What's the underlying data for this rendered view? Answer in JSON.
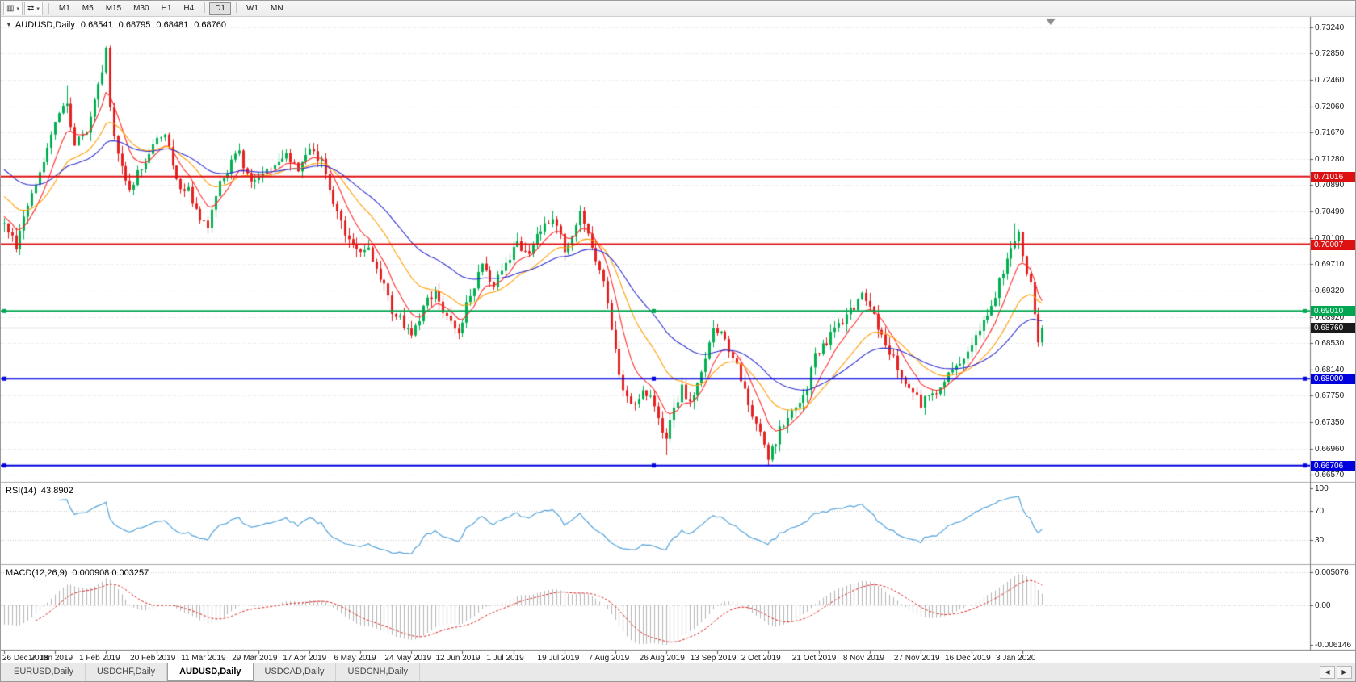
{
  "toolbar": {
    "tool_buttons": [
      {
        "name": "chart-type-button",
        "glyph": "▥",
        "caret": "▾"
      },
      {
        "name": "chart-shift-button",
        "glyph": "⇄",
        "caret": "▾"
      }
    ],
    "periods": [
      "M1",
      "M5",
      "M15",
      "M30",
      "H1",
      "H4",
      "D1",
      "W1",
      "MN"
    ],
    "active_period": "D1"
  },
  "chart": {
    "marker_glyph": "▼",
    "symbol": "AUDUSD,Daily",
    "open": "0.68541",
    "high": "0.68795",
    "low": "0.68481",
    "close": "0.68760",
    "price_axis_labels": [
      "0.73240",
      "0.72850",
      "0.72460",
      "0.72060",
      "0.71670",
      "0.71280",
      "0.70890",
      "0.70490",
      "0.70100",
      "0.69710",
      "0.69320",
      "0.68920",
      "0.68530",
      "0.68140",
      "0.67750",
      "0.67350",
      "0.66960",
      "0.66570"
    ],
    "hlines": [
      {
        "value": 0.71016,
        "label": "0.71016",
        "color": "#DD1111",
        "handles": false
      },
      {
        "value": 0.70007,
        "label": "0.70007",
        "color": "#DD1111",
        "handles": false
      },
      {
        "value": 0.6901,
        "label": "0.69010",
        "color": "#00A651",
        "handles": true
      },
      {
        "value": 0.68,
        "label": "0.68000",
        "color": "#0000DD",
        "handles": true
      },
      {
        "value": 0.66706,
        "label": "0.66706",
        "color": "#0000DD",
        "handles": true
      }
    ],
    "bid": {
      "value": 0.6876,
      "label": "0.68760",
      "line_color": "#A0A0A0",
      "badge_color": "#1A1A1A"
    }
  },
  "rsi": {
    "title": "RSI(14)",
    "value": "43.8902",
    "axis_labels": [
      "100",
      "70",
      "30"
    ],
    "levels": [
      70,
      30
    ],
    "line_color": "#55A3DA"
  },
  "macd": {
    "title": "MACD(12,26,9)",
    "values": "0.000908 0.003257",
    "axis_labels": [
      "0.005076",
      "0.00",
      "-0.006146"
    ],
    "axis_max": 0.005076,
    "axis_min": -0.006146,
    "hist_color": "#B4B4B4",
    "signal_color": "#D82222"
  },
  "dates": [
    "26 Dec 2018",
    "14 Jan 2019",
    "1 Feb 2019",
    "20 Feb 2019",
    "11 Mar 2019",
    "29 Mar 2019",
    "17 Apr 2019",
    "6 May 2019",
    "24 May 2019",
    "12 Jun 2019",
    "1 Jul 2019",
    "19 Jul 2019",
    "7 Aug 2019",
    "26 Aug 2019",
    "13 Sep 2019",
    "2 Oct 2019",
    "21 Oct 2019",
    "8 Nov 2019",
    "27 Nov 2019",
    "16 Dec 2019",
    "3 Jan 2020"
  ],
  "tabs": {
    "items": [
      {
        "label": "EURUSD,Daily",
        "active": false
      },
      {
        "label": "USDCHF,Daily",
        "active": false
      },
      {
        "label": "AUDUSD,Daily",
        "active": true
      },
      {
        "label": "USDCAD,Daily",
        "active": false
      },
      {
        "label": "USDCNH,Daily",
        "active": false
      }
    ],
    "scroll_left": "◀",
    "scroll_right": "▶"
  },
  "chart_data": {
    "type": "candlestick",
    "symbol": "AUDUSD",
    "timeframe": "Daily",
    "title": "AUDUSD,Daily 0.68541 0.68795 0.68481 0.68760",
    "ylim": [
      0.6657,
      0.7324
    ],
    "bars": 266,
    "seed": 12,
    "up_color": "#00B050",
    "down_color": "#E62020",
    "visible_ohlc": {
      "open": 0.68541,
      "high": 0.68795,
      "low": 0.68481,
      "close": 0.6876
    },
    "anchors": [
      [
        0,
        0.7035
      ],
      [
        3,
        0.7
      ],
      [
        6,
        0.7062
      ],
      [
        10,
        0.7128
      ],
      [
        13,
        0.7188
      ],
      [
        16,
        0.7212
      ],
      [
        18,
        0.7152
      ],
      [
        21,
        0.7168
      ],
      [
        24,
        0.7235
      ],
      [
        26,
        0.7288
      ],
      [
        27,
        0.7198
      ],
      [
        29,
        0.7132
      ],
      [
        32,
        0.7086
      ],
      [
        35,
        0.7116
      ],
      [
        38,
        0.7152
      ],
      [
        41,
        0.7162
      ],
      [
        44,
        0.7092
      ],
      [
        47,
        0.7082
      ],
      [
        50,
        0.7042
      ],
      [
        52,
        0.7026
      ],
      [
        55,
        0.7092
      ],
      [
        58,
        0.7122
      ],
      [
        60,
        0.7136
      ],
      [
        63,
        0.7092
      ],
      [
        66,
        0.7106
      ],
      [
        69,
        0.7122
      ],
      [
        72,
        0.7132
      ],
      [
        75,
        0.7116
      ],
      [
        78,
        0.7142
      ],
      [
        81,
        0.7126
      ],
      [
        84,
        0.7062
      ],
      [
        87,
        0.7016
      ],
      [
        90,
        0.6992
      ],
      [
        93,
        0.6996
      ],
      [
        96,
        0.6952
      ],
      [
        99,
        0.6902
      ],
      [
        102,
        0.6882
      ],
      [
        104,
        0.6866
      ],
      [
        107,
        0.6906
      ],
      [
        110,
        0.6932
      ],
      [
        113,
        0.6892
      ],
      [
        116,
        0.6872
      ],
      [
        119,
        0.6926
      ],
      [
        122,
        0.6966
      ],
      [
        125,
        0.6942
      ],
      [
        128,
        0.6966
      ],
      [
        131,
        0.7002
      ],
      [
        134,
        0.6986
      ],
      [
        137,
        0.7022
      ],
      [
        140,
        0.7042
      ],
      [
        143,
        0.6996
      ],
      [
        145,
        0.7012
      ],
      [
        147,
        0.7046
      ],
      [
        150,
        0.6992
      ],
      [
        153,
        0.6946
      ],
      [
        155,
        0.6876
      ],
      [
        157,
        0.6802
      ],
      [
        159,
        0.6772
      ],
      [
        161,
        0.6756
      ],
      [
        163,
        0.6786
      ],
      [
        165,
        0.6772
      ],
      [
        167,
        0.6742
      ],
      [
        169,
        0.6706
      ],
      [
        171,
        0.6756
      ],
      [
        173,
        0.6786
      ],
      [
        175,
        0.6762
      ],
      [
        177,
        0.6796
      ],
      [
        179,
        0.6832
      ],
      [
        181,
        0.6882
      ],
      [
        184,
        0.6862
      ],
      [
        187,
        0.6816
      ],
      [
        190,
        0.6762
      ],
      [
        193,
        0.6716
      ],
      [
        195,
        0.6682
      ],
      [
        198,
        0.6722
      ],
      [
        201,
        0.6752
      ],
      [
        204,
        0.6772
      ],
      [
        207,
        0.6832
      ],
      [
        210,
        0.6856
      ],
      [
        213,
        0.6882
      ],
      [
        216,
        0.6902
      ],
      [
        219,
        0.6926
      ],
      [
        222,
        0.6892
      ],
      [
        225,
        0.6856
      ],
      [
        228,
        0.6816
      ],
      [
        231,
        0.6786
      ],
      [
        234,
        0.6762
      ],
      [
        237,
        0.6776
      ],
      [
        240,
        0.6796
      ],
      [
        243,
        0.6816
      ],
      [
        246,
        0.6842
      ],
      [
        249,
        0.6872
      ],
      [
        252,
        0.6906
      ],
      [
        255,
        0.6962
      ],
      [
        258,
        0.7012
      ],
      [
        259,
        0.7022
      ],
      [
        260,
        0.6986
      ],
      [
        262,
        0.6938
      ],
      [
        264,
        0.6854
      ],
      [
        265,
        0.6876
      ]
    ],
    "wick_overrides": {
      "3": {
        "l": 0.6993
      },
      "16": {
        "h": 0.7238
      },
      "26": {
        "h": 0.7296
      },
      "104": {
        "l": 0.6864
      },
      "169": {
        "l": 0.6686
      },
      "195": {
        "l": 0.66706
      },
      "258": {
        "h": 0.7032
      }
    },
    "moving_averages": [
      {
        "type": "ema",
        "period": 8,
        "color": "#FF2A2A",
        "seed_offset": 0.001
      },
      {
        "type": "ema",
        "period": 20,
        "color": "#FF9D00",
        "seed_offset": 0.004
      },
      {
        "type": "ema",
        "period": 40,
        "color": "#2B2BD0",
        "seed_offset": 0.008
      }
    ],
    "indicators": {
      "rsi_period": 14,
      "macd_params": [
        12,
        26,
        9
      ]
    }
  }
}
